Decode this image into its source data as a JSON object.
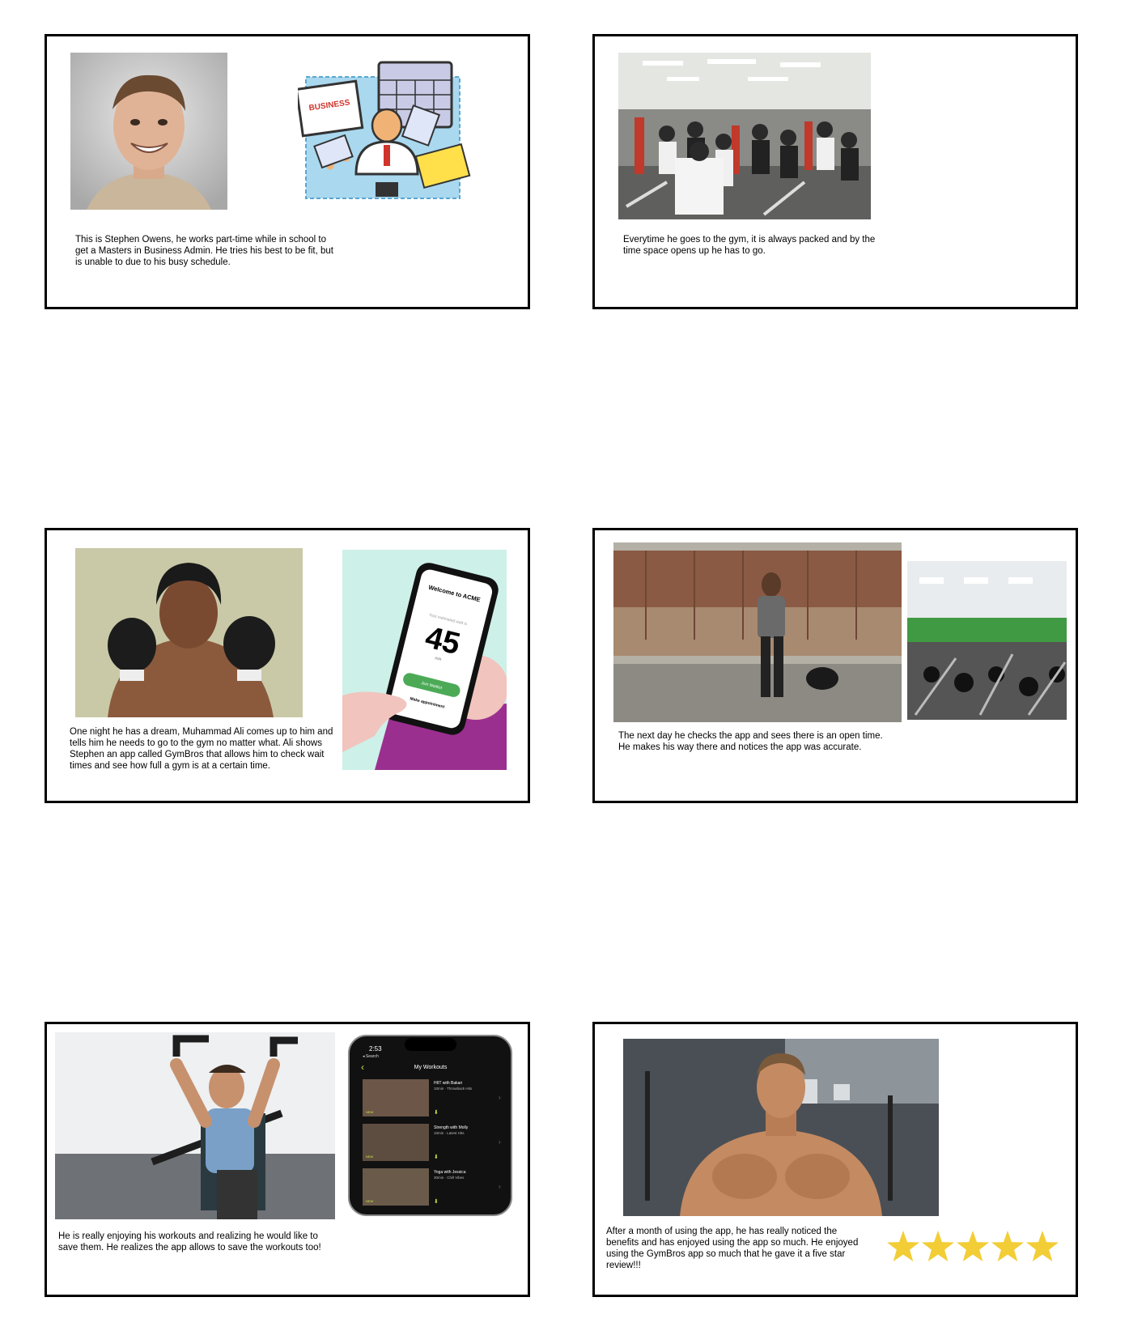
{
  "panels": [
    {
      "caption": "This is Stephen Owens, he works part-time while in school to get a Masters in Business Admin. He tries his best to be fit, but is unable to due to his busy schedule."
    },
    {
      "caption": "Everytime he goes to the gym, it is always packed and by the time space opens up he has to go."
    },
    {
      "caption": "One night he has a dream, Muhammad Ali comes up to him and tells him he needs to go to the gym no matter what. Ali shows Stephen an app called GymBros that allows him to check wait times and see how full a gym is at a certain time."
    },
    {
      "caption": "The next day he checks the app and sees there is an open time. He makes his way there and notices the app was accurate."
    },
    {
      "caption": "He is really enjoying his workouts and realizing he would like to save them. He realizes the app allows to save the workouts too!"
    },
    {
      "caption": "After a month of using the app, he has really noticed the benefits and has enjoyed using the app so much. He enjoyed using the GymBros app so much that he gave it a five star review!!!"
    }
  ],
  "phone_acme": {
    "welcome": "Welcome to ACME",
    "wait_label": "Your estimated wait is",
    "wait_value": "45",
    "wait_unit": "min",
    "join_button": "Join Waitlist",
    "appointment_link": "Make appointment"
  },
  "phone_workouts": {
    "time": "2:53",
    "back": "◂ Search",
    "title": "My Workouts",
    "items": [
      {
        "title": "HIIT with Bakari",
        "subtitle": "10min · Throwback Hits",
        "badge": "NEW"
      },
      {
        "title": "Strength with Molly",
        "subtitle": "10min · Latest Hits",
        "badge": "NEW"
      },
      {
        "title": "Yoga with Jessica",
        "subtitle": "30min · Chill Vibes",
        "badge": "NEW"
      }
    ]
  },
  "sign_text": "BUSINESS",
  "rating": {
    "stars": 5,
    "max": 5,
    "color": "#f2cd36"
  }
}
